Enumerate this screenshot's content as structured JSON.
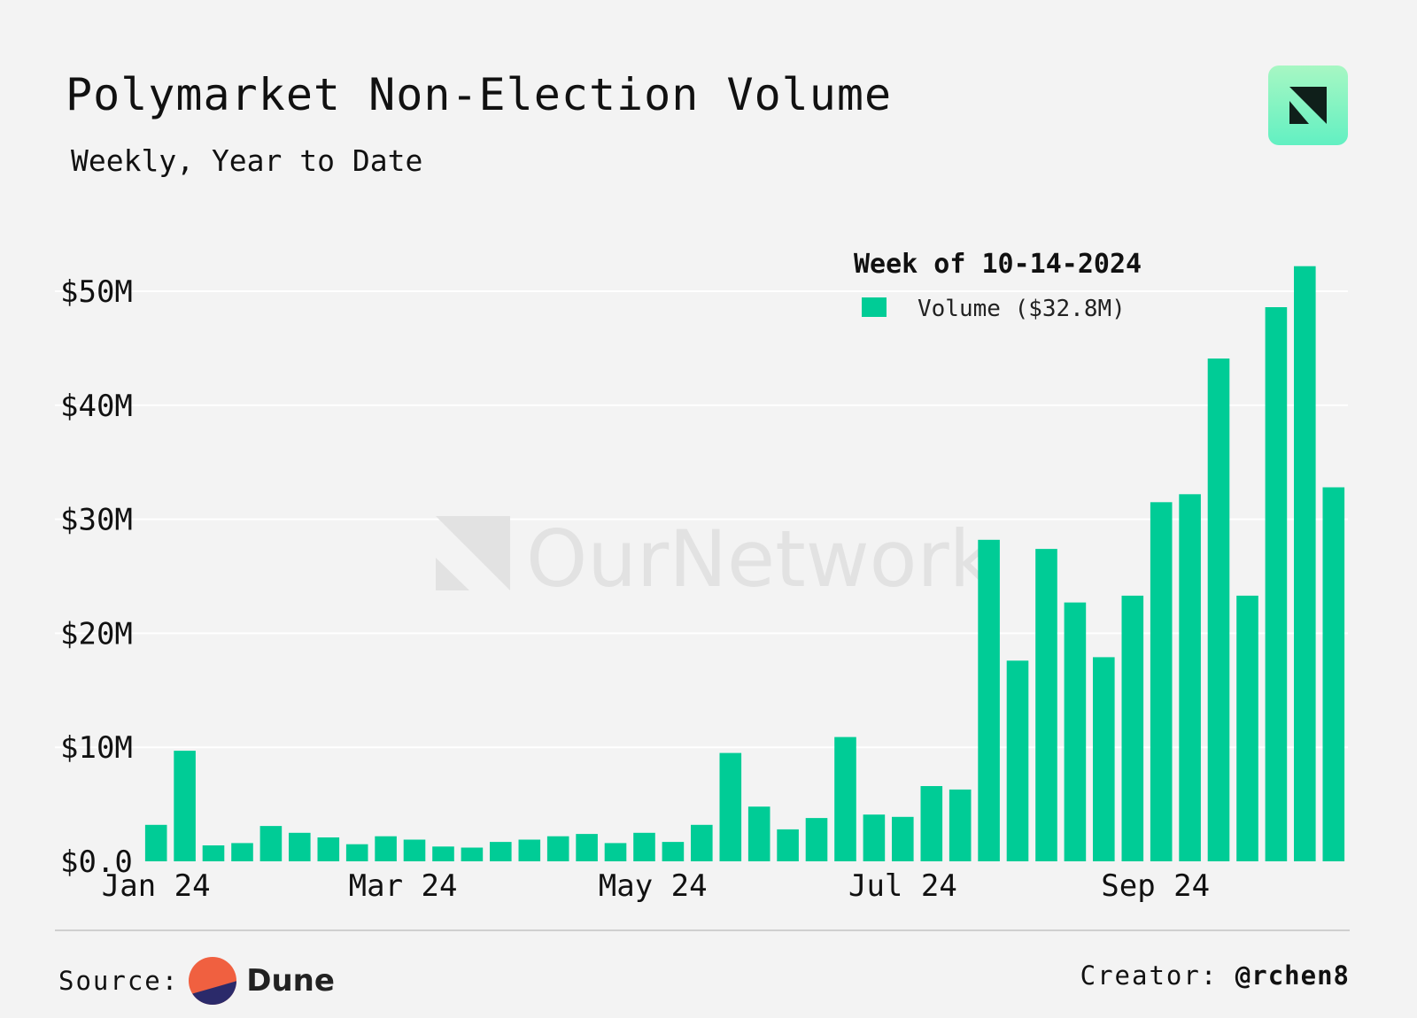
{
  "header": {
    "title": "Polymarket Non-Election Volume",
    "subtitle": "Weekly, Year to Date"
  },
  "brand": {
    "logo_icon": "ournetwork-logo-icon",
    "accent": "#00cc96",
    "logo_bg": "#7ef5c0"
  },
  "watermark": {
    "text": "OurNetwork"
  },
  "chart_data": {
    "type": "bar",
    "title": "Polymarket Non-Election Volume",
    "subtitle": "Weekly, Year to Date",
    "series_name": "Volume",
    "color": "#00cc96",
    "legend": {
      "title": "Week of 10-14-2024",
      "label": "Volume ($32.8M)",
      "placement": "top-right"
    },
    "ylim": [
      0,
      52
    ],
    "y_ticks": [
      0,
      10,
      20,
      30,
      40,
      50
    ],
    "y_tick_labels": [
      "$0.0",
      "$10M",
      "$20M",
      "$30M",
      "$40M",
      "$50M"
    ],
    "x_tick_labels": [
      {
        "label": "Jan 24",
        "index": 0
      },
      {
        "label": "Mar 24",
        "index": 8.6
      },
      {
        "label": "May 24",
        "index": 17.3
      },
      {
        "label": "Jul 24",
        "index": 26
      },
      {
        "label": "Sep 24",
        "index": 34.8
      }
    ],
    "values": [
      3.2,
      9.7,
      1.4,
      1.6,
      3.1,
      2.5,
      2.1,
      1.5,
      2.2,
      1.9,
      1.3,
      1.2,
      1.7,
      1.9,
      2.2,
      2.4,
      1.6,
      2.5,
      1.7,
      3.2,
      9.5,
      4.8,
      2.8,
      3.8,
      10.9,
      4.1,
      3.9,
      6.6,
      6.3,
      28.2,
      17.6,
      27.4,
      22.7,
      17.9,
      23.3,
      31.5,
      32.2,
      44.1,
      23.3,
      48.6,
      52.2,
      32.8
    ]
  },
  "footer": {
    "source_label": "Source:",
    "source_name": "Dune",
    "source_icon": "dune-logo-icon",
    "creator_label": "Creator:",
    "creator_handle": "@rchen8"
  }
}
